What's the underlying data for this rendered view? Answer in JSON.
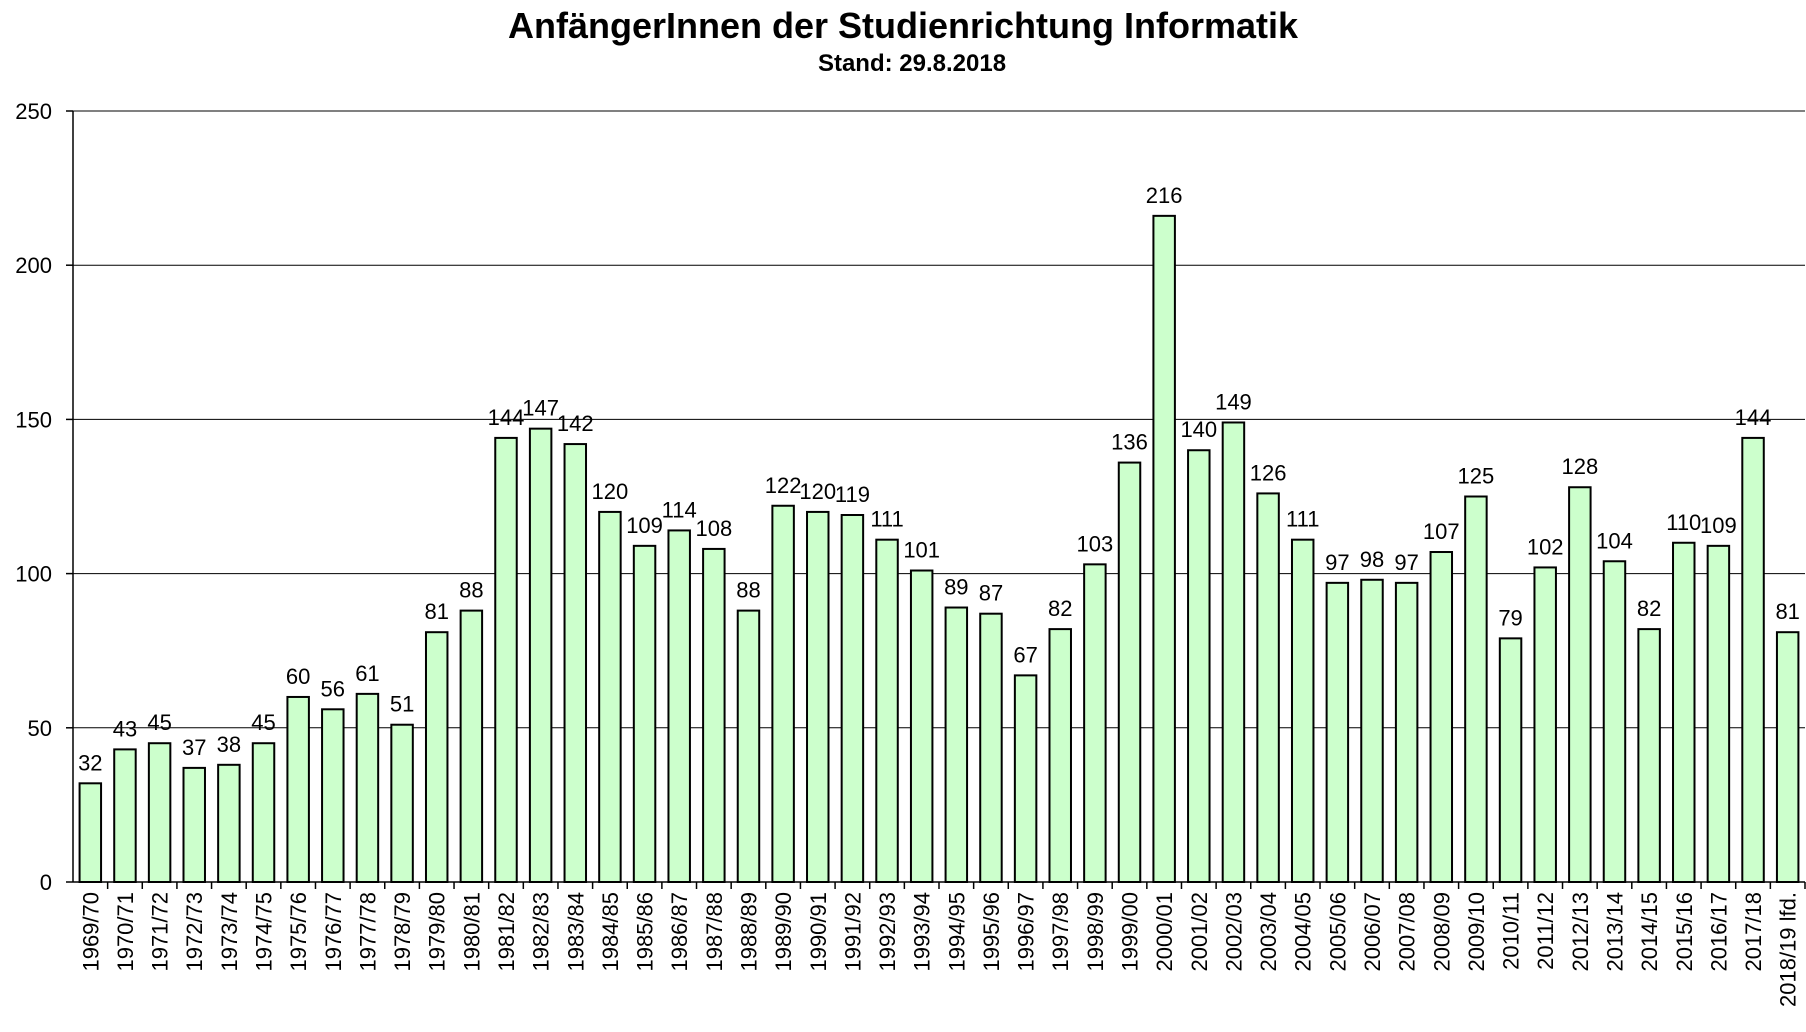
{
  "chart_data": {
    "type": "bar",
    "title": "AnfängerInnen der Studienrichtung Informatik",
    "subtitle": "Stand: 29.8.2018",
    "xlabel": "",
    "ylabel": "",
    "ylim": [
      0,
      250
    ],
    "yticks": [
      0,
      50,
      100,
      150,
      200,
      250
    ],
    "grid": true,
    "bar_color": "#ccffcc",
    "categories": [
      "1969/70",
      "1970/71",
      "1971/72",
      "1972/73",
      "1973/74",
      "1974/75",
      "1975/76",
      "1976/77",
      "1977/78",
      "1978/79",
      "1979/80",
      "1980/81",
      "1981/82",
      "1982/83",
      "1983/84",
      "1984/85",
      "1985/86",
      "1986/87",
      "1987/88",
      "1988/89",
      "1989/90",
      "1990/91",
      "1991/92",
      "1992/93",
      "1993/94",
      "1994/95",
      "1995/96",
      "1996/97",
      "1997/98",
      "1998/99",
      "1999/00",
      "2000/01",
      "2001/02",
      "2002/03",
      "2003/04",
      "2004/05",
      "2005/06",
      "2006/07",
      "2007/08",
      "2008/09",
      "2009/10",
      "2010/11",
      "2011/12",
      "2012/13",
      "2013/14",
      "2014/15",
      "2015/16",
      "2016/17",
      "2017/18",
      "2018/19 lfd."
    ],
    "values": [
      32,
      43,
      45,
      37,
      38,
      45,
      60,
      56,
      61,
      51,
      81,
      88,
      144,
      147,
      142,
      120,
      109,
      114,
      108,
      88,
      122,
      120,
      119,
      111,
      101,
      89,
      87,
      67,
      82,
      103,
      136,
      216,
      140,
      149,
      126,
      111,
      97,
      98,
      97,
      107,
      125,
      79,
      102,
      128,
      104,
      82,
      110,
      109,
      144,
      81
    ]
  }
}
